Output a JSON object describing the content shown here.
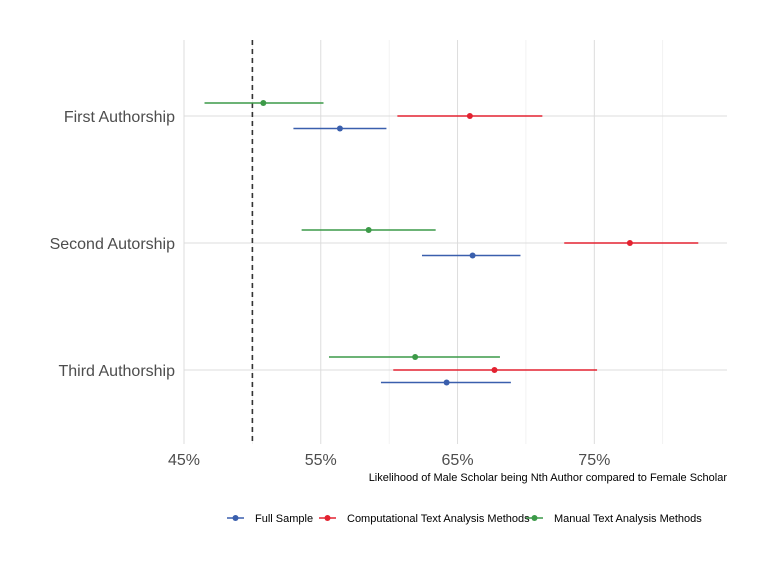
{
  "chart_data": {
    "type": "forest",
    "title": "",
    "xlabel": "Likelihood of Male Scholar being Nth Author compared to Female Scholar",
    "ylabel": "",
    "xlim": [
      45,
      84.7
    ],
    "x_ticks": [
      45,
      55,
      65,
      75
    ],
    "x_tick_labels": [
      "45%",
      "55%",
      "65%",
      "75%"
    ],
    "reference_line": 50,
    "categories": [
      "First Authorship",
      "Second Autorship",
      "Third Authorship"
    ],
    "series": [
      {
        "name": "Full Sample",
        "color": "#3a5fad",
        "points": [
          {
            "category": "First Authorship",
            "estimate": 56.4,
            "low": 53.0,
            "high": 59.8
          },
          {
            "category": "Second Autorship",
            "estimate": 66.1,
            "low": 62.4,
            "high": 69.6
          },
          {
            "category": "Third Authorship",
            "estimate": 64.2,
            "low": 59.4,
            "high": 68.9
          }
        ]
      },
      {
        "name": "Computational Text Analysis Methods",
        "color": "#e32230",
        "points": [
          {
            "category": "First Authorship",
            "estimate": 65.9,
            "low": 60.6,
            "high": 71.2
          },
          {
            "category": "Second Autorship",
            "estimate": 77.6,
            "low": 72.8,
            "high": 82.6
          },
          {
            "category": "Third Authorship",
            "estimate": 67.7,
            "low": 60.3,
            "high": 75.2
          }
        ]
      },
      {
        "name": "Manual Text Analysis Methods",
        "color": "#3c9a48",
        "points": [
          {
            "category": "First Authorship",
            "estimate": 50.8,
            "low": 46.5,
            "high": 55.2
          },
          {
            "category": "Second Autorship",
            "estimate": 58.5,
            "low": 53.6,
            "high": 63.4
          },
          {
            "category": "Third Authorship",
            "estimate": 61.9,
            "low": 55.6,
            "high": 68.1
          }
        ]
      }
    ],
    "grid": true,
    "legend_position": "bottom"
  }
}
